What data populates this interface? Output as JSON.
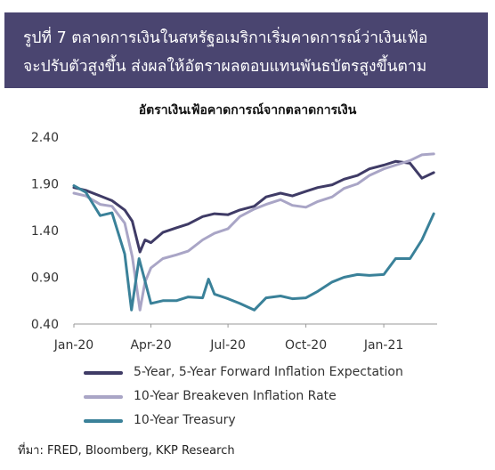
{
  "header": {
    "title_line1": "รูปที่ 7 ตลาดการเงินในสหรัฐอเมริกาเริ่มคาดการณ์ว่าเงินเฟ้อ",
    "title_line2": "จะปรับตัวสูงขึ้น ส่งผลให้อัตราผลตอบแทนพันธบัตรสูงขึ้นตาม"
  },
  "source": "ที่มา: FRED, Bloomberg, KKP Research",
  "chart_data": {
    "type": "line",
    "title": "อัตราเงินเฟ้อคาดการณ์จากตลาดการเงิน",
    "xlabel": "",
    "ylabel": "",
    "ylim": [
      0.4,
      2.4
    ],
    "xlim": [
      "2020-01-01",
      "2021-03-05"
    ],
    "x_ticks": [
      "Jan-20",
      "Apr-20",
      "Jul-20",
      "Oct-20",
      "Jan-21"
    ],
    "y_ticks": [
      "0.40",
      "0.90",
      "1.40",
      "1.90",
      "2.40"
    ],
    "grid": false,
    "legend_position": "bottom",
    "series": [
      {
        "name": "5-Year, 5-Year Forward Inflation Expectation",
        "color": "#3f3b66",
        "points": [
          [
            "2020-01-01",
            1.86
          ],
          [
            "2020-01-15",
            1.83
          ],
          [
            "2020-02-01",
            1.77
          ],
          [
            "2020-02-15",
            1.72
          ],
          [
            "2020-03-01",
            1.62
          ],
          [
            "2020-03-10",
            1.5
          ],
          [
            "2020-03-19",
            1.17
          ],
          [
            "2020-03-25",
            1.3
          ],
          [
            "2020-04-01",
            1.27
          ],
          [
            "2020-04-15",
            1.38
          ],
          [
            "2020-05-01",
            1.43
          ],
          [
            "2020-05-15",
            1.47
          ],
          [
            "2020-06-01",
            1.55
          ],
          [
            "2020-06-15",
            1.58
          ],
          [
            "2020-07-01",
            1.57
          ],
          [
            "2020-07-15",
            1.62
          ],
          [
            "2020-08-01",
            1.66
          ],
          [
            "2020-08-15",
            1.76
          ],
          [
            "2020-09-01",
            1.8
          ],
          [
            "2020-09-15",
            1.77
          ],
          [
            "2020-10-01",
            1.82
          ],
          [
            "2020-10-15",
            1.86
          ],
          [
            "2020-11-01",
            1.89
          ],
          [
            "2020-11-15",
            1.95
          ],
          [
            "2020-12-01",
            1.99
          ],
          [
            "2020-12-15",
            2.06
          ],
          [
            "2021-01-01",
            2.1
          ],
          [
            "2021-01-15",
            2.14
          ],
          [
            "2021-02-01",
            2.12
          ],
          [
            "2021-02-15",
            1.96
          ],
          [
            "2021-03-01",
            2.02
          ]
        ]
      },
      {
        "name": "10-Year Breakeven Inflation Rate",
        "color": "#a9a5c6",
        "points": [
          [
            "2020-01-01",
            1.8
          ],
          [
            "2020-01-15",
            1.77
          ],
          [
            "2020-02-01",
            1.68
          ],
          [
            "2020-02-15",
            1.66
          ],
          [
            "2020-03-01",
            1.48
          ],
          [
            "2020-03-10",
            1.12
          ],
          [
            "2020-03-19",
            0.55
          ],
          [
            "2020-03-25",
            0.85
          ],
          [
            "2020-04-01",
            1.0
          ],
          [
            "2020-04-15",
            1.1
          ],
          [
            "2020-05-01",
            1.14
          ],
          [
            "2020-05-15",
            1.18
          ],
          [
            "2020-06-01",
            1.3
          ],
          [
            "2020-06-15",
            1.37
          ],
          [
            "2020-07-01",
            1.42
          ],
          [
            "2020-07-15",
            1.55
          ],
          [
            "2020-08-01",
            1.63
          ],
          [
            "2020-08-15",
            1.68
          ],
          [
            "2020-09-01",
            1.73
          ],
          [
            "2020-09-15",
            1.67
          ],
          [
            "2020-10-01",
            1.65
          ],
          [
            "2020-10-15",
            1.71
          ],
          [
            "2020-11-01",
            1.76
          ],
          [
            "2020-11-15",
            1.85
          ],
          [
            "2020-12-01",
            1.9
          ],
          [
            "2020-12-15",
            1.99
          ],
          [
            "2021-01-01",
            2.06
          ],
          [
            "2021-01-15",
            2.1
          ],
          [
            "2021-02-01",
            2.15
          ],
          [
            "2021-02-15",
            2.21
          ],
          [
            "2021-03-01",
            2.22
          ]
        ]
      },
      {
        "name": "10-Year Treasury",
        "color": "#3a8199",
        "points": [
          [
            "2020-01-01",
            1.88
          ],
          [
            "2020-01-15",
            1.81
          ],
          [
            "2020-02-01",
            1.56
          ],
          [
            "2020-02-15",
            1.59
          ],
          [
            "2020-03-01",
            1.15
          ],
          [
            "2020-03-09",
            0.55
          ],
          [
            "2020-03-18",
            1.1
          ],
          [
            "2020-03-25",
            0.86
          ],
          [
            "2020-04-01",
            0.62
          ],
          [
            "2020-04-15",
            0.65
          ],
          [
            "2020-05-01",
            0.65
          ],
          [
            "2020-05-15",
            0.69
          ],
          [
            "2020-06-01",
            0.68
          ],
          [
            "2020-06-08",
            0.88
          ],
          [
            "2020-06-15",
            0.72
          ],
          [
            "2020-07-01",
            0.67
          ],
          [
            "2020-07-15",
            0.62
          ],
          [
            "2020-08-01",
            0.55
          ],
          [
            "2020-08-15",
            0.68
          ],
          [
            "2020-09-01",
            0.7
          ],
          [
            "2020-09-15",
            0.67
          ],
          [
            "2020-10-01",
            0.68
          ],
          [
            "2020-10-15",
            0.75
          ],
          [
            "2020-11-01",
            0.85
          ],
          [
            "2020-11-15",
            0.9
          ],
          [
            "2020-12-01",
            0.93
          ],
          [
            "2020-12-15",
            0.92
          ],
          [
            "2021-01-01",
            0.93
          ],
          [
            "2021-01-15",
            1.1
          ],
          [
            "2021-02-01",
            1.1
          ],
          [
            "2021-02-15",
            1.3
          ],
          [
            "2021-03-01",
            1.58
          ]
        ]
      }
    ]
  }
}
